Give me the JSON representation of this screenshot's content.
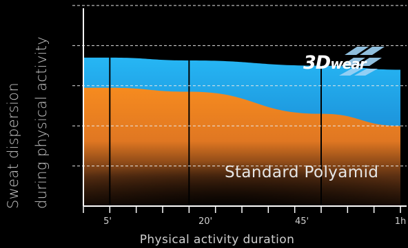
{
  "chart_data": {
    "type": "area",
    "ylabel": [
      "Sweat dispersion",
      "during physical activity"
    ],
    "xlabel": "Physical  activity duration",
    "x_ticks": [
      "5'",
      "20'",
      "45'",
      "1h"
    ],
    "x_tick_minutes": [
      5,
      20,
      45,
      60
    ],
    "x_range": [
      0,
      60
    ],
    "y_range": [
      0,
      5
    ],
    "grid_y": [
      1,
      2,
      3,
      4,
      5
    ],
    "grid_style": "dashed",
    "series": [
      {
        "name": "3Dwear",
        "x": [
          0,
          5,
          20,
          45,
          60
        ],
        "values": [
          3.7,
          3.7,
          3.63,
          3.5,
          3.4
        ],
        "color": "#1fa2e8"
      },
      {
        "name": "Standard Polyamid",
        "x": [
          0,
          5,
          20,
          45,
          60
        ],
        "values": [
          2.95,
          2.95,
          2.85,
          2.3,
          2.0
        ],
        "color": "#f18a22"
      }
    ],
    "annotations": [
      "Standard Polyamid"
    ]
  },
  "logo": {
    "text_a": "3D",
    "text_b": "wear"
  }
}
